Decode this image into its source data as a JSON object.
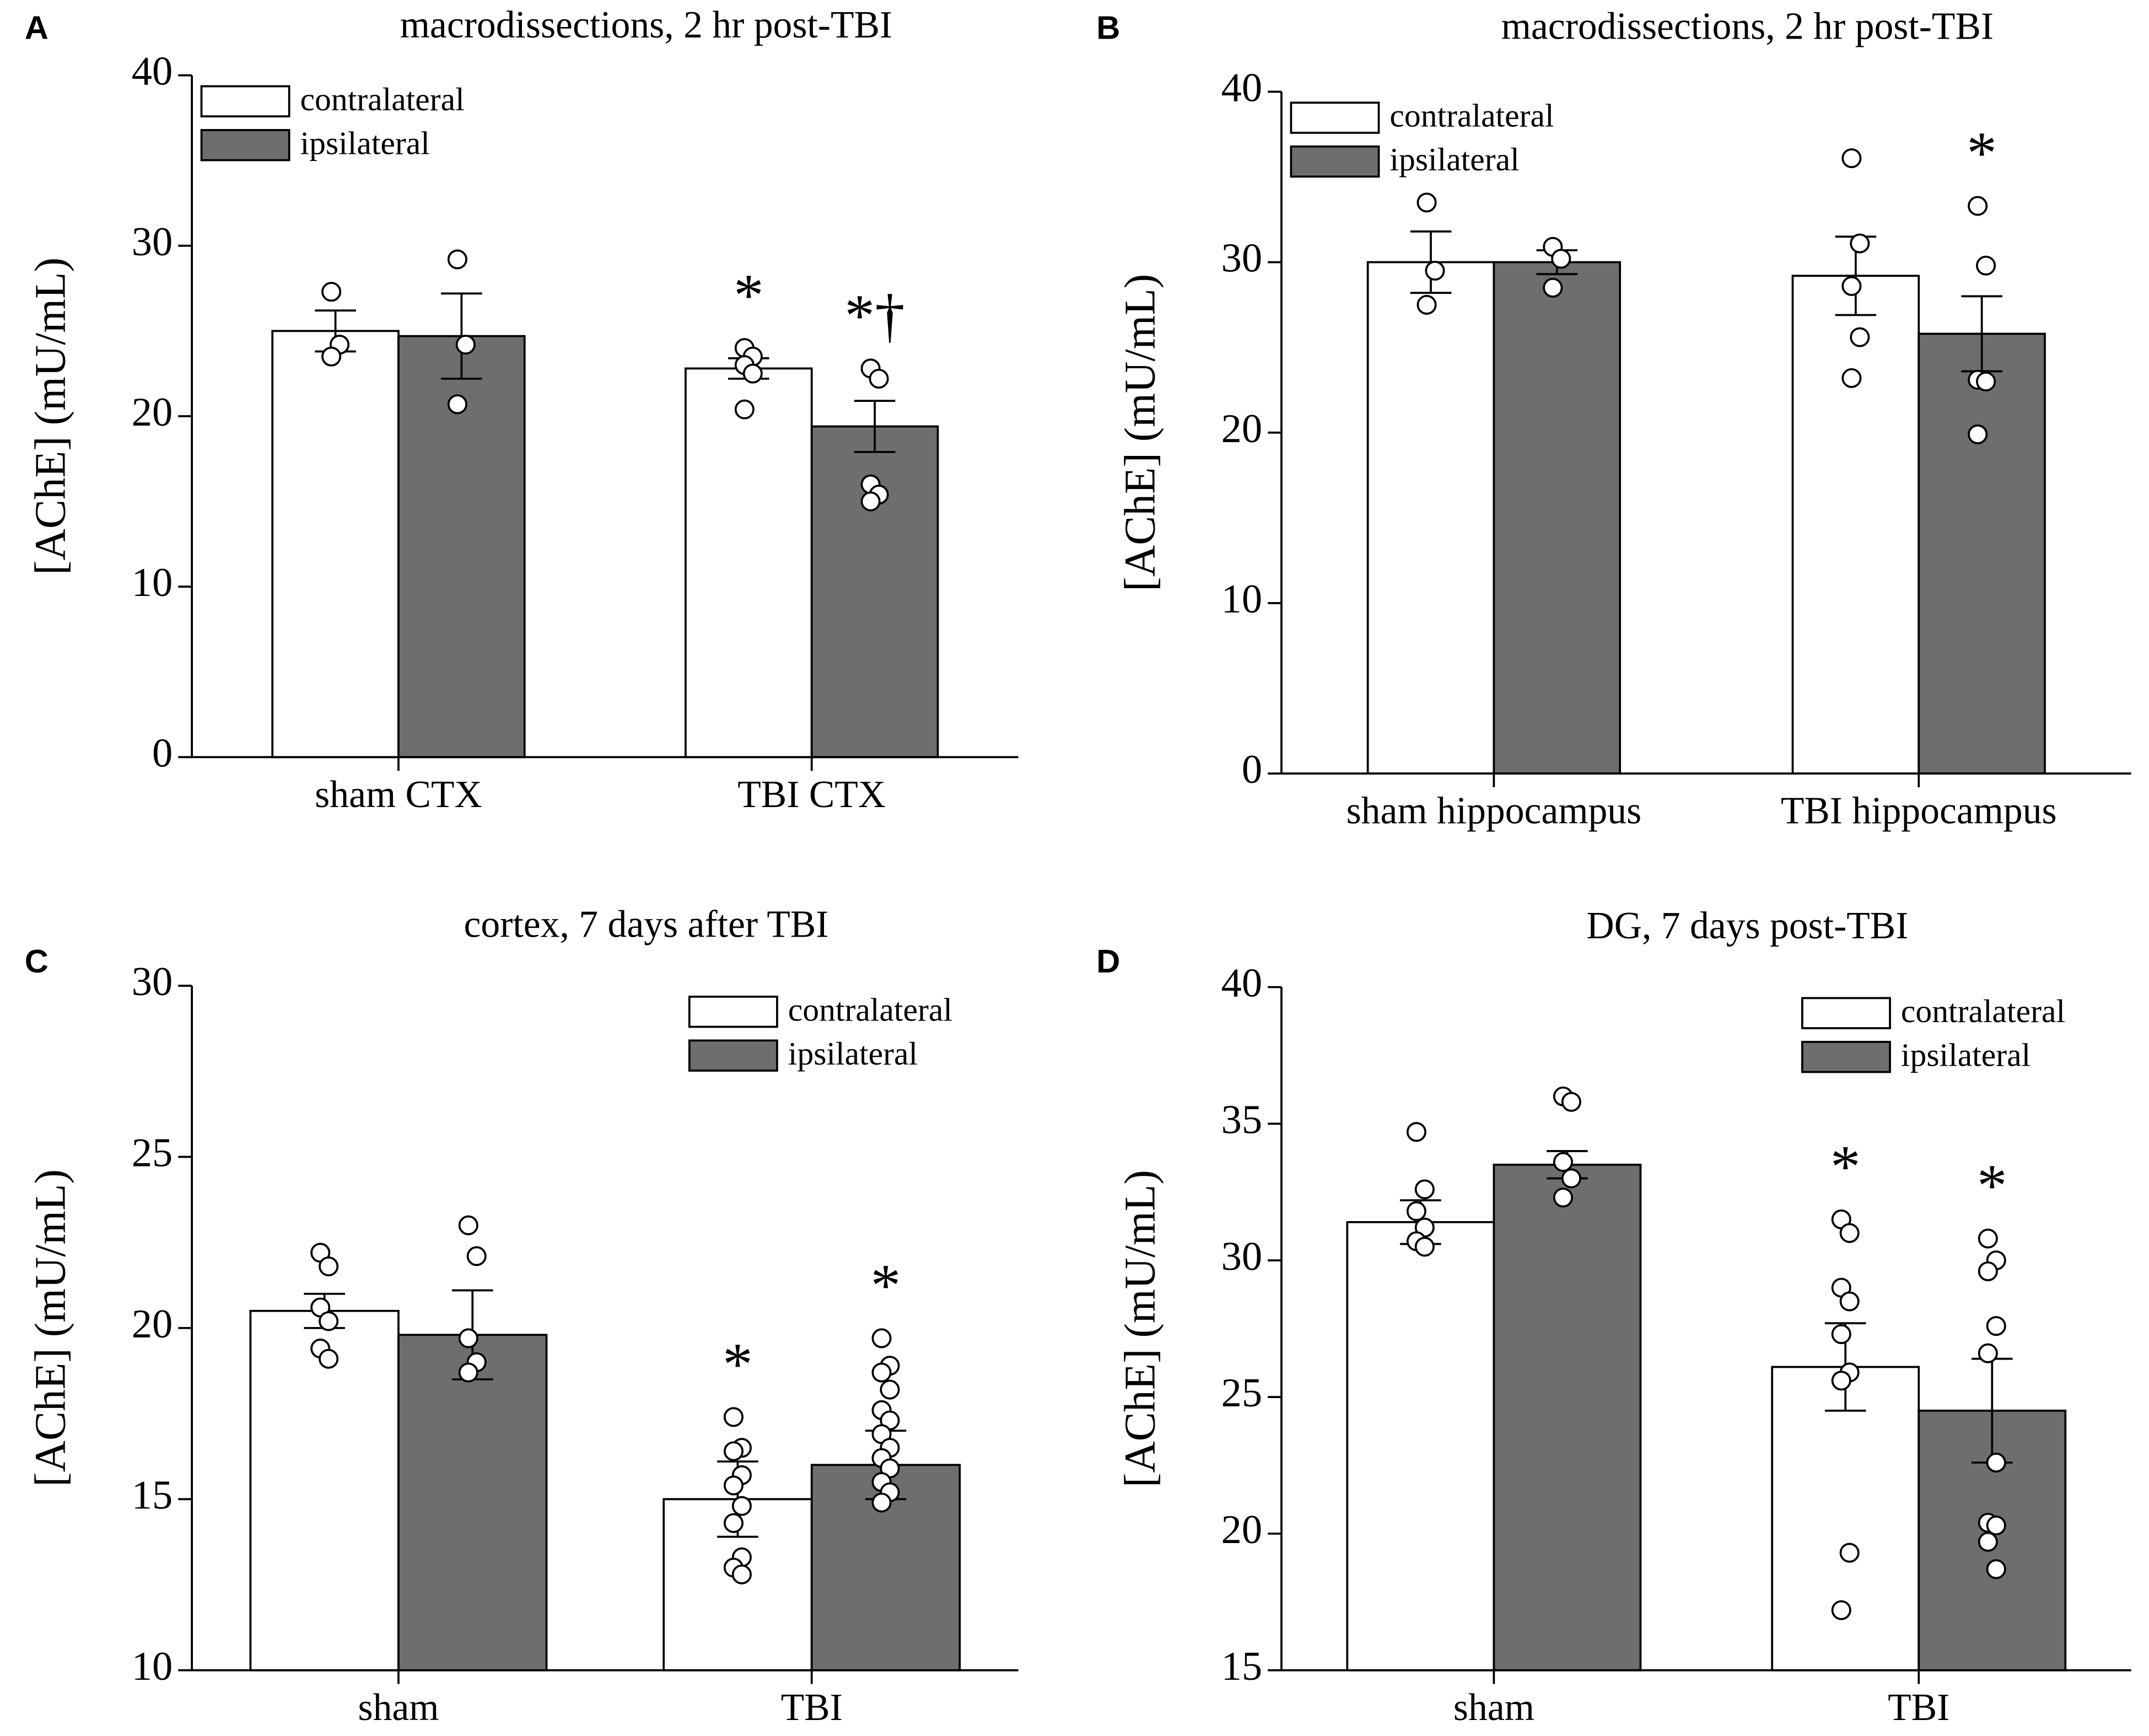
{
  "chart_data": [
    {
      "type": "bar",
      "panel": "A",
      "title": "macrodissections, 2 hr post-TBI",
      "ylabel": "[AChE] (mU/mL)",
      "categories": [
        "sham CTX",
        "TBI CTX"
      ],
      "ylim": [
        0,
        40
      ],
      "yticks": [
        0,
        10,
        20,
        30,
        40
      ],
      "legend": "upper left",
      "series": [
        {
          "name": "contralateral",
          "color": "#ffffff",
          "values": [
            25.0,
            22.8
          ],
          "errors": [
            1.2,
            0.6
          ],
          "points": [
            [
              27.3,
              24.2,
              23.5
            ],
            [
              24.0,
              23.5,
              23.0,
              22.5,
              20.4
            ]
          ],
          "annotations": [
            null,
            "*"
          ]
        },
        {
          "name": "ipsilateral",
          "color": "#6e6e6e",
          "values": [
            24.7,
            19.4
          ],
          "errors": [
            2.5,
            1.5
          ],
          "points": [
            [
              29.2,
              24.2,
              20.7
            ],
            [
              22.8,
              22.2,
              16.0,
              15.4,
              15.0
            ]
          ],
          "annotations": [
            null,
            "*†"
          ]
        }
      ]
    },
    {
      "type": "bar",
      "panel": "B",
      "title": "macrodissections, 2 hr post-TBI",
      "ylabel": "[AChE] (mU/mL)",
      "categories": [
        "sham hippocampus",
        "TBI hippocampus"
      ],
      "ylim": [
        0,
        40
      ],
      "yticks": [
        0,
        10,
        20,
        30,
        40
      ],
      "legend": "upper left",
      "series": [
        {
          "name": "contralateral",
          "color": "#ffffff",
          "values": [
            30.0,
            29.2
          ],
          "errors": [
            1.8,
            2.3
          ],
          "points": [
            [
              33.5,
              29.5,
              27.5
            ],
            [
              36.1,
              31.1,
              28.6,
              25.6,
              23.2
            ]
          ],
          "annotations": [
            null,
            null
          ]
        },
        {
          "name": "ipsilateral",
          "color": "#6e6e6e",
          "values": [
            30.0,
            25.8
          ],
          "errors": [
            0.7,
            2.2
          ],
          "points": [
            [
              30.9,
              30.2,
              28.5
            ],
            [
              33.3,
              29.8,
              23.1,
              23.0,
              19.9
            ]
          ],
          "annotations": [
            null,
            "*"
          ]
        }
      ]
    },
    {
      "type": "bar",
      "panel": "C",
      "title": "cortex, 7 days after TBI",
      "ylabel": "[AChE] (mU/mL)",
      "categories": [
        "sham",
        "TBI"
      ],
      "ylim": [
        10,
        30
      ],
      "yticks": [
        10,
        15,
        20,
        25,
        30
      ],
      "legend": "upper right",
      "series": [
        {
          "name": "contralateral",
          "color": "#ffffff",
          "values": [
            20.5,
            15.0
          ],
          "errors": [
            0.5,
            1.1
          ],
          "points": [
            [
              22.2,
              21.8,
              20.6,
              20.2,
              19.4,
              19.1
            ],
            [
              17.4,
              16.5,
              16.4,
              15.7,
              15.4,
              14.8,
              14.3,
              13.3,
              13.0,
              12.8
            ]
          ],
          "annotations": [
            null,
            "*"
          ]
        },
        {
          "name": "ipsilateral",
          "color": "#6e6e6e",
          "values": [
            19.8,
            16.0
          ],
          "errors": [
            1.3,
            1.0
          ],
          "points": [
            [
              23.0,
              22.1,
              19.7,
              19.0,
              18.7
            ],
            [
              19.7,
              18.9,
              18.7,
              18.2,
              17.6,
              17.3,
              16.9,
              16.5,
              16.2,
              15.9,
              15.5,
              15.2,
              14.9
            ]
          ],
          "annotations": [
            null,
            "*"
          ]
        }
      ]
    },
    {
      "type": "bar",
      "panel": "D",
      "title": "DG, 7 days post-TBI",
      "ylabel": "[AChE] (mU/mL)",
      "categories": [
        "sham",
        "TBI"
      ],
      "ylim": [
        15,
        40
      ],
      "yticks": [
        15,
        20,
        25,
        30,
        35,
        40
      ],
      "legend": "upper right",
      "series": [
        {
          "name": "contralateral",
          "color": "#ffffff",
          "values": [
            31.4,
            26.1
          ],
          "errors": [
            0.8,
            1.6
          ],
          "points": [
            [
              34.7,
              32.6,
              31.8,
              31.2,
              30.7,
              30.5
            ],
            [
              31.5,
              31.0,
              29.0,
              28.5,
              27.3,
              25.9,
              25.6,
              19.3,
              17.2
            ]
          ],
          "annotations": [
            null,
            "*"
          ]
        },
        {
          "name": "ipsilateral",
          "color": "#6e6e6e",
          "values": [
            33.5,
            24.5
          ],
          "errors": [
            0.5,
            1.9
          ],
          "points": [
            [
              36.0,
              35.8,
              33.6,
              33.0,
              32.3
            ],
            [
              30.8,
              30.0,
              29.6,
              27.6,
              26.6,
              22.6,
              20.4,
              20.3,
              19.7,
              18.7
            ]
          ],
          "annotations": [
            null,
            "*"
          ]
        }
      ]
    }
  ]
}
